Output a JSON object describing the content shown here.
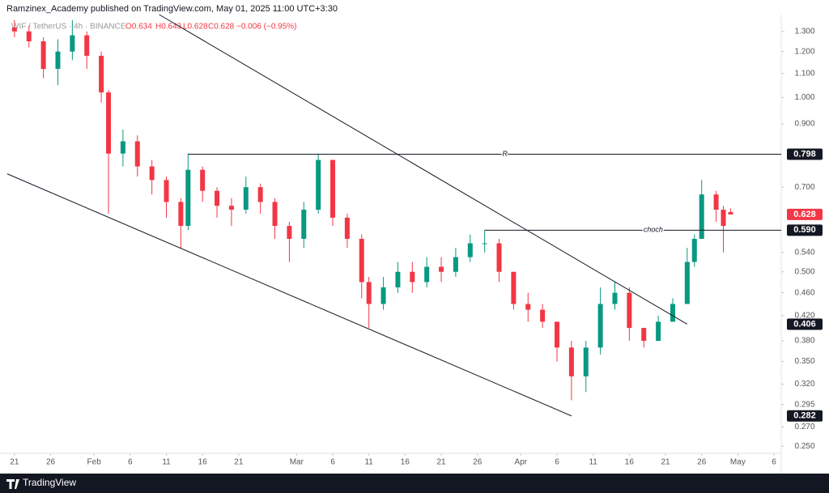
{
  "header": {
    "title": "Ramzinex_Academy published on TradingView.com, May 01, 2025 11:00 UTC+3:30",
    "symbol": "WIF / TetherUS · 4h · BINANCE",
    "ohlc": [
      "O0.634",
      "H0.643",
      "L0.628",
      "C0.628",
      "−0.006 (−0.95%)"
    ]
  },
  "footer": {
    "brand": "TradingView"
  },
  "chart_data": {
    "type": "candlestick",
    "log_scale": true,
    "grid": false,
    "up_color": "#089981",
    "down_color": "#f23645",
    "xlim": [
      "Jan 19",
      "May 7"
    ],
    "ylim": [
      0.243,
      1.39
    ],
    "xticks": [
      {
        "value": "Jan 21",
        "label": "21"
      },
      {
        "value": "Jan 26",
        "label": "26"
      },
      {
        "value": "Feb 1",
        "label": "Feb"
      },
      {
        "value": "Feb 6",
        "label": "6"
      },
      {
        "value": "Feb 11",
        "label": "11"
      },
      {
        "value": "Feb 16",
        "label": "16"
      },
      {
        "value": "Feb 21",
        "label": "21"
      },
      {
        "value": "Mar 1",
        "label": "Mar"
      },
      {
        "value": "Mar 6",
        "label": "6"
      },
      {
        "value": "Mar 11",
        "label": "11"
      },
      {
        "value": "Mar 16",
        "label": "16"
      },
      {
        "value": "Mar 21",
        "label": "21"
      },
      {
        "value": "Mar 26",
        "label": "26"
      },
      {
        "value": "Apr 1",
        "label": "Apr"
      },
      {
        "value": "Apr 6",
        "label": "6"
      },
      {
        "value": "Apr 11",
        "label": "11"
      },
      {
        "value": "Apr 16",
        "label": "16"
      },
      {
        "value": "Apr 21",
        "label": "21"
      },
      {
        "value": "Apr 26",
        "label": "26"
      },
      {
        "value": "May 1",
        "label": "May"
      },
      {
        "value": "May 6",
        "label": "6"
      }
    ],
    "yticks": [
      {
        "value": 1.3,
        "label": "1.300"
      },
      {
        "value": 1.2,
        "label": "1.200"
      },
      {
        "value": 1.1,
        "label": "1.100"
      },
      {
        "value": 1.0,
        "label": "1.000"
      },
      {
        "value": 0.9,
        "label": "0.900"
      },
      {
        "value": 0.7,
        "label": "0.700"
      },
      {
        "value": 0.54,
        "label": "0.540"
      },
      {
        "value": 0.5,
        "label": "0.500"
      },
      {
        "value": 0.46,
        "label": "0.460"
      },
      {
        "value": 0.42,
        "label": "0.420"
      },
      {
        "value": 0.38,
        "label": "0.380"
      },
      {
        "value": 0.35,
        "label": "0.350"
      },
      {
        "value": 0.32,
        "label": "0.320"
      },
      {
        "value": 0.295,
        "label": "0.295"
      },
      {
        "value": 0.27,
        "label": "0.270"
      },
      {
        "value": 0.25,
        "label": "0.250"
      }
    ],
    "x": [
      "Jan 21",
      "Jan 23",
      "Jan 25",
      "Jan 27",
      "Jan 29",
      "Jan 31",
      "Feb 2",
      "Feb 3",
      "Feb 5",
      "Feb 7",
      "Feb 9",
      "Feb 11",
      "Feb 13",
      "Feb 14",
      "Feb 16",
      "Feb 18",
      "Feb 20",
      "Feb 22",
      "Feb 24",
      "Feb 26",
      "Feb 28",
      "Mar 2",
      "Mar 4",
      "Mar 6",
      "Mar 8",
      "Mar 10",
      "Mar 11",
      "Mar 13",
      "Mar 15",
      "Mar 17",
      "Mar 19",
      "Mar 21",
      "Mar 23",
      "Mar 25",
      "Mar 27",
      "Mar 29",
      "Mar 31",
      "Apr 2",
      "Apr 4",
      "Apr 6",
      "Apr 8",
      "Apr 10",
      "Apr 12",
      "Apr 14",
      "Apr 16",
      "Apr 18",
      "Apr 20",
      "Apr 22",
      "Apr 24",
      "Apr 25",
      "Apr 26",
      "Apr 28",
      "Apr 29",
      "Apr 30"
    ],
    "open": [
      1.32,
      1.3,
      1.25,
      1.12,
      1.2,
      1.28,
      1.18,
      1.02,
      0.8,
      0.84,
      0.76,
      0.72,
      0.66,
      0.6,
      0.75,
      0.69,
      0.65,
      0.64,
      0.7,
      0.66,
      0.6,
      0.57,
      0.64,
      0.78,
      0.62,
      0.57,
      0.48,
      0.44,
      0.47,
      0.5,
      0.48,
      0.51,
      0.5,
      0.53,
      0.56,
      0.56,
      0.5,
      0.44,
      0.43,
      0.41,
      0.37,
      0.33,
      0.37,
      0.44,
      0.46,
      0.4,
      0.38,
      0.41,
      0.44,
      0.52,
      0.57,
      0.68,
      0.64,
      0.634
    ],
    "high": [
      1.36,
      1.33,
      1.27,
      1.26,
      1.36,
      1.3,
      1.2,
      1.03,
      0.88,
      0.86,
      0.78,
      0.73,
      0.67,
      0.8,
      0.76,
      0.7,
      0.67,
      0.73,
      0.71,
      0.67,
      0.61,
      0.66,
      0.8,
      0.78,
      0.63,
      0.58,
      0.49,
      0.49,
      0.52,
      0.52,
      0.53,
      0.53,
      0.55,
      0.58,
      0.59,
      0.57,
      0.5,
      0.46,
      0.44,
      0.41,
      0.38,
      0.38,
      0.47,
      0.48,
      0.47,
      0.4,
      0.42,
      0.45,
      0.55,
      0.58,
      0.72,
      0.69,
      0.65,
      0.643
    ],
    "low": [
      1.27,
      1.22,
      1.08,
      1.05,
      1.16,
      1.12,
      0.98,
      0.63,
      0.76,
      0.73,
      0.68,
      0.62,
      0.55,
      0.59,
      0.66,
      0.62,
      0.6,
      0.63,
      0.63,
      0.57,
      0.52,
      0.55,
      0.63,
      0.6,
      0.55,
      0.45,
      0.4,
      0.43,
      0.46,
      0.46,
      0.47,
      0.48,
      0.49,
      0.52,
      0.54,
      0.48,
      0.43,
      0.41,
      0.4,
      0.35,
      0.3,
      0.31,
      0.36,
      0.43,
      0.38,
      0.37,
      0.38,
      0.41,
      0.44,
      0.51,
      0.57,
      0.61,
      0.54,
      0.628
    ],
    "close": [
      1.3,
      1.25,
      1.12,
      1.2,
      1.28,
      1.18,
      1.02,
      0.8,
      0.84,
      0.76,
      0.72,
      0.66,
      0.6,
      0.75,
      0.69,
      0.65,
      0.64,
      0.7,
      0.66,
      0.6,
      0.57,
      0.64,
      0.78,
      0.62,
      0.57,
      0.48,
      0.44,
      0.47,
      0.5,
      0.48,
      0.51,
      0.5,
      0.53,
      0.56,
      0.56,
      0.5,
      0.44,
      0.43,
      0.41,
      0.37,
      0.33,
      0.37,
      0.44,
      0.46,
      0.4,
      0.38,
      0.41,
      0.44,
      0.52,
      0.57,
      0.68,
      0.64,
      0.6,
      0.628
    ],
    "last_label": "0.628",
    "levels": [
      {
        "name": "R",
        "value": 0.798,
        "label": "0.798",
        "from": "Feb 14"
      },
      {
        "name": "choch",
        "value": 0.59,
        "label": "0.590",
        "from": "Mar 27"
      }
    ],
    "trend_lines": [
      {
        "start": {
          "x": "Feb 10",
          "y": 1.39
        },
        "end": {
          "x": "Apr 24",
          "y": 0.406,
          "label": "0.406"
        }
      },
      {
        "start": {
          "x": "Jan 20",
          "y": 0.738
        },
        "end": {
          "x": "Apr 8",
          "y": 0.282,
          "label": "0.282"
        }
      }
    ]
  }
}
